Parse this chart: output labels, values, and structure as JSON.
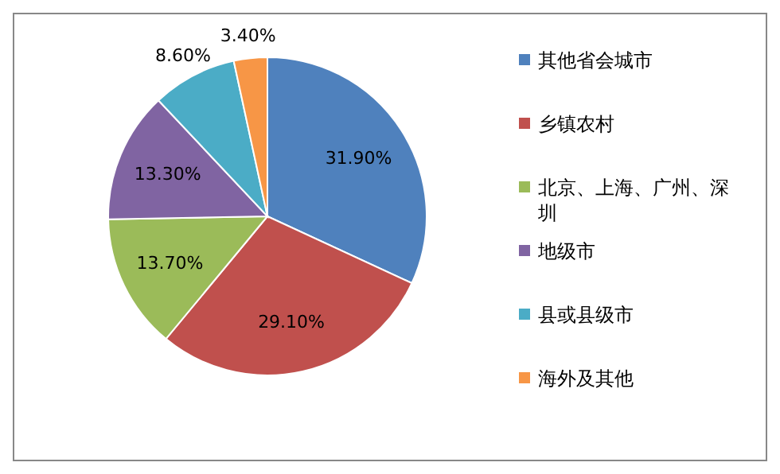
{
  "chart_data": {
    "type": "pie",
    "categories": [
      "其他省会城市",
      "乡镇农村",
      "北京、上海、广州、深圳",
      "地级市",
      "县或县级市",
      "海外及其他"
    ],
    "values": [
      31.9,
      29.1,
      13.7,
      13.3,
      8.6,
      3.4
    ],
    "value_labels": [
      "31.90%",
      "29.10%",
      "13.70%",
      "13.30%",
      "8.60%",
      "3.40%"
    ],
    "colors": [
      "#4f81bd",
      "#c0504d",
      "#9bbb59",
      "#8064a2",
      "#4bacc6",
      "#f79646"
    ],
    "legend": "right"
  }
}
